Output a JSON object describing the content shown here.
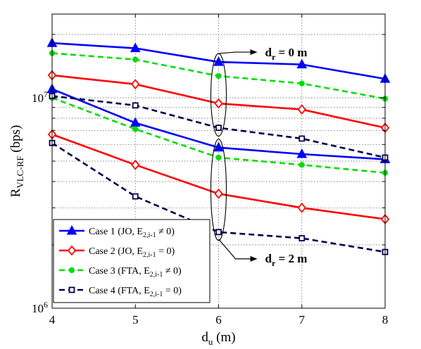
{
  "chart_data": {
    "type": "line",
    "xlabel_main": "d",
    "xlabel_sub": "u",
    "xlabel_unit": " (m)",
    "ylabel_main": "R",
    "ylabel_sub": "VLC-RF",
    "ylabel_unit": " (bps)",
    "x": [
      4,
      5,
      6,
      7,
      8
    ],
    "x_ticks": [
      "4",
      "5",
      "6",
      "7",
      "8"
    ],
    "xlim": [
      4,
      8
    ],
    "ylim": [
      1000000,
      25000000
    ],
    "yscale": "log",
    "y_ticks": [
      {
        "value": 1000000,
        "base": "10",
        "exp": "6"
      },
      {
        "value": 10000000,
        "base": "10",
        "exp": "7"
      }
    ],
    "grid": true,
    "legend_position": "bottom-left",
    "series": [
      {
        "name": "Case 1 (JO, E",
        "name_sub": "2,i-1",
        "name_tail": " ≠ 0)",
        "color": "#0000ff",
        "marker": "triangle",
        "dash": "solid",
        "values_dr0": [
          18200000,
          17200000,
          14800000,
          14400000,
          12300000
        ],
        "values_dr2": [
          11000000,
          7600000,
          5800000,
          5400000,
          5100000
        ]
      },
      {
        "name": "Case 2 (JO, E",
        "name_sub": "2,i-1",
        "name_tail": " = 0)",
        "color": "#ff0000",
        "marker": "diamond",
        "dash": "solid",
        "values_dr0": [
          12800000,
          11600000,
          9400000,
          8800000,
          7200000
        ],
        "values_dr2": [
          6700000,
          4800000,
          3500000,
          3000000,
          2650000
        ]
      },
      {
        "name": "Case 3 (FTA, E",
        "name_sub": "2,i-1",
        "name_tail": " ≠ 0)",
        "color": "#00dd00",
        "marker": "circle",
        "dash": "dashed",
        "values_dr0": [
          16300000,
          15200000,
          12700000,
          11700000,
          9900000
        ],
        "values_dr2": [
          10000000,
          7100000,
          5200000,
          4800000,
          4400000
        ]
      },
      {
        "name": "Case 4 (FTA, E",
        "name_sub": "2,i-1",
        "name_tail": " = 0)",
        "color": "#00004a",
        "marker": "square",
        "dash": "dashed",
        "values_dr0": [
          10200000,
          9200000,
          7200000,
          6400000,
          5200000
        ],
        "values_dr2": [
          6100000,
          3400000,
          2300000,
          2150000,
          1850000
        ]
      }
    ],
    "annotations": [
      {
        "main": "d",
        "sub": "r",
        "tail": " = 0 m"
      },
      {
        "main": "d",
        "sub": "r",
        "tail": " = 2 m"
      }
    ]
  }
}
